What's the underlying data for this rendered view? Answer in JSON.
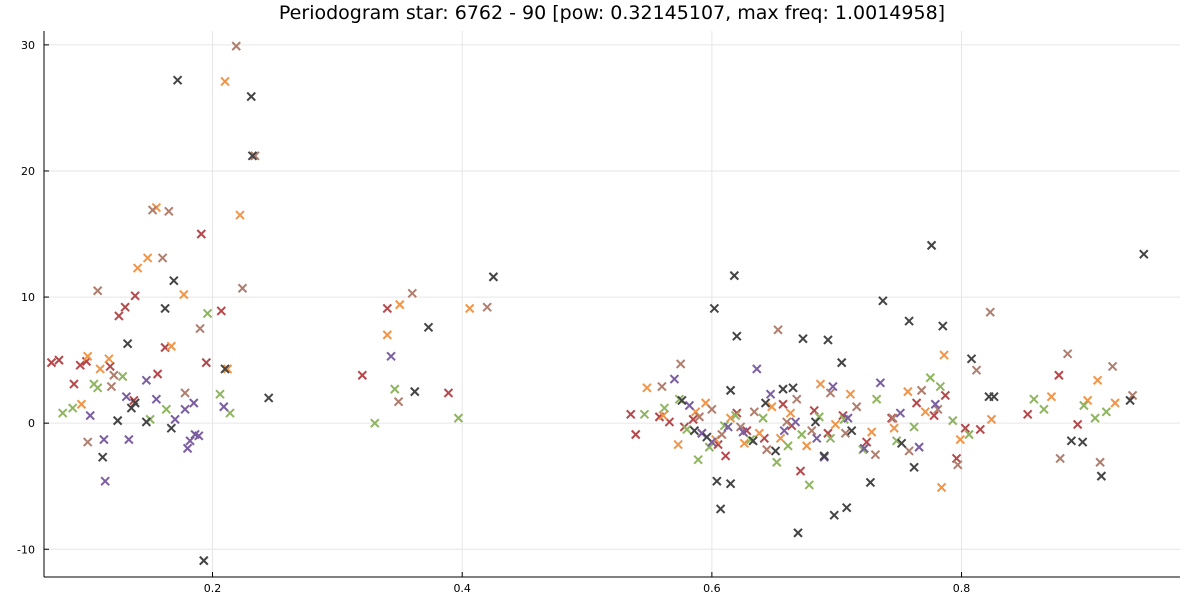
{
  "chart_data": {
    "type": "scatter",
    "title": "Periodogram star: 6762 - 90 [pow: 0.32145107, max freq: 1.0014958]",
    "xlabel": "",
    "ylabel": "",
    "xlim": [
      0.065,
      0.975
    ],
    "ylim": [
      -12.2,
      31.1
    ],
    "x_ticks": [
      0.2,
      0.4,
      0.6,
      0.8
    ],
    "x_tick_labels": [
      "0.2",
      "0.4",
      "0.6",
      "0.8"
    ],
    "y_ticks": [
      -10,
      0,
      10,
      20,
      30
    ],
    "y_tick_labels": [
      "-10",
      "0",
      "10",
      "20",
      "30"
    ],
    "grid": true,
    "legend": "none",
    "marker": "x",
    "series": [
      {
        "color": "#b5484b",
        "points": [
          [
            0.071,
            4.8
          ],
          [
            0.077,
            5.0
          ],
          [
            0.089,
            3.1
          ],
          [
            0.094,
            4.6
          ],
          [
            0.099,
            4.9
          ],
          [
            0.118,
            4.5
          ],
          [
            0.125,
            8.5
          ],
          [
            0.13,
            9.2
          ],
          [
            0.137,
            1.8
          ],
          [
            0.138,
            10.1
          ],
          [
            0.156,
            3.9
          ],
          [
            0.162,
            6.0
          ],
          [
            0.191,
            15.0
          ],
          [
            0.195,
            4.8
          ],
          [
            0.207,
            8.9
          ],
          [
            0.32,
            3.8
          ],
          [
            0.34,
            9.1
          ],
          [
            0.389,
            2.4
          ],
          [
            0.535,
            0.7
          ],
          [
            0.539,
            -0.9
          ],
          [
            0.558,
            0.5
          ],
          [
            0.566,
            0.1
          ],
          [
            0.578,
            -0.3
          ],
          [
            0.585,
            0.3
          ],
          [
            0.592,
            -0.8
          ],
          [
            0.605,
            -1.7
          ],
          [
            0.611,
            -2.6
          ],
          [
            0.62,
            0.8
          ],
          [
            0.628,
            -0.6
          ],
          [
            0.642,
            -1.2
          ],
          [
            0.657,
            1.5
          ],
          [
            0.664,
            -0.2
          ],
          [
            0.671,
            -3.8
          ],
          [
            0.682,
            1.0
          ],
          [
            0.693,
            -0.8
          ],
          [
            0.705,
            0.6
          ],
          [
            0.724,
            -1.5
          ],
          [
            0.744,
            0.4
          ],
          [
            0.764,
            1.6
          ],
          [
            0.778,
            0.6
          ],
          [
            0.787,
            2.2
          ],
          [
            0.796,
            -2.8
          ],
          [
            0.803,
            -0.4
          ],
          [
            0.815,
            -0.5
          ],
          [
            0.853,
            0.7
          ],
          [
            0.878,
            3.8
          ],
          [
            0.893,
            -0.1
          ]
        ]
      },
      {
        "color": "#f0954a",
        "points": [
          [
            0.095,
            1.5
          ],
          [
            0.1,
            5.3
          ],
          [
            0.11,
            4.3
          ],
          [
            0.117,
            5.1
          ],
          [
            0.14,
            12.3
          ],
          [
            0.148,
            13.1
          ],
          [
            0.155,
            17.1
          ],
          [
            0.167,
            6.1
          ],
          [
            0.177,
            10.2
          ],
          [
            0.21,
            27.1
          ],
          [
            0.212,
            4.3
          ],
          [
            0.222,
            16.5
          ],
          [
            0.34,
            7.0
          ],
          [
            0.35,
            9.4
          ],
          [
            0.406,
            9.1
          ],
          [
            0.548,
            2.8
          ],
          [
            0.561,
            0.6
          ],
          [
            0.573,
            -1.7
          ],
          [
            0.587,
            0.9
          ],
          [
            0.595,
            1.6
          ],
          [
            0.603,
            -1.3
          ],
          [
            0.615,
            0.4
          ],
          [
            0.626,
            -1.6
          ],
          [
            0.638,
            -0.8
          ],
          [
            0.648,
            1.3
          ],
          [
            0.655,
            -1.2
          ],
          [
            0.663,
            0.8
          ],
          [
            0.676,
            -1.8
          ],
          [
            0.687,
            3.1
          ],
          [
            0.699,
            -0.1
          ],
          [
            0.711,
            2.3
          ],
          [
            0.728,
            -0.7
          ],
          [
            0.746,
            -0.4
          ],
          [
            0.757,
            2.5
          ],
          [
            0.771,
            0.9
          ],
          [
            0.784,
            -5.1
          ],
          [
            0.786,
            5.4
          ],
          [
            0.799,
            -1.3
          ],
          [
            0.824,
            0.3
          ],
          [
            0.872,
            2.1
          ],
          [
            0.901,
            1.8
          ],
          [
            0.909,
            3.4
          ],
          [
            0.923,
            1.6
          ]
        ]
      },
      {
        "color": "#b07e6e",
        "points": [
          [
            0.1,
            -1.5
          ],
          [
            0.108,
            10.5
          ],
          [
            0.119,
            2.9
          ],
          [
            0.121,
            3.8
          ],
          [
            0.152,
            16.9
          ],
          [
            0.16,
            13.1
          ],
          [
            0.165,
            16.8
          ],
          [
            0.178,
            2.4
          ],
          [
            0.19,
            7.5
          ],
          [
            0.219,
            29.9
          ],
          [
            0.224,
            10.7
          ],
          [
            0.234,
            21.2
          ],
          [
            0.36,
            10.3
          ],
          [
            0.349,
            1.7
          ],
          [
            0.42,
            9.2
          ],
          [
            0.56,
            2.9
          ],
          [
            0.575,
            4.7
          ],
          [
            0.59,
            0.5
          ],
          [
            0.6,
            1.1
          ],
          [
            0.608,
            -0.9
          ],
          [
            0.623,
            -0.3
          ],
          [
            0.634,
            0.9
          ],
          [
            0.644,
            -2.1
          ],
          [
            0.653,
            7.4
          ],
          [
            0.66,
            0.1
          ],
          [
            0.668,
            1.9
          ],
          [
            0.68,
            -0.6
          ],
          [
            0.695,
            2.4
          ],
          [
            0.707,
            -0.8
          ],
          [
            0.716,
            1.3
          ],
          [
            0.731,
            -2.5
          ],
          [
            0.745,
            0.4
          ],
          [
            0.758,
            -2.2
          ],
          [
            0.768,
            2.6
          ],
          [
            0.781,
            1.1
          ],
          [
            0.797,
            -3.3
          ],
          [
            0.812,
            4.2
          ],
          [
            0.823,
            8.8
          ],
          [
            0.879,
            -2.8
          ],
          [
            0.885,
            5.5
          ],
          [
            0.911,
            -3.1
          ],
          [
            0.921,
            4.5
          ],
          [
            0.937,
            2.2
          ]
        ]
      },
      {
        "color": "#8fb561",
        "points": [
          [
            0.08,
            0.8
          ],
          [
            0.088,
            1.2
          ],
          [
            0.105,
            3.1
          ],
          [
            0.108,
            2.8
          ],
          [
            0.128,
            3.7
          ],
          [
            0.15,
            0.3
          ],
          [
            0.163,
            1.1
          ],
          [
            0.196,
            8.7
          ],
          [
            0.206,
            2.3
          ],
          [
            0.214,
            0.8
          ],
          [
            0.33,
            0.0
          ],
          [
            0.346,
            2.7
          ],
          [
            0.397,
            0.4
          ],
          [
            0.546,
            0.7
          ],
          [
            0.562,
            1.2
          ],
          [
            0.574,
            1.9
          ],
          [
            0.58,
            -0.5
          ],
          [
            0.589,
            -2.9
          ],
          [
            0.598,
            -1.9
          ],
          [
            0.61,
            -0.2
          ],
          [
            0.619,
            0.6
          ],
          [
            0.631,
            -1.3
          ],
          [
            0.641,
            0.4
          ],
          [
            0.652,
            -3.1
          ],
          [
            0.661,
            -1.8
          ],
          [
            0.672,
            -0.9
          ],
          [
            0.678,
            -4.9
          ],
          [
            0.686,
            0.5
          ],
          [
            0.695,
            -1.2
          ],
          [
            0.706,
            0.3
          ],
          [
            0.721,
            -2.1
          ],
          [
            0.732,
            1.9
          ],
          [
            0.748,
            -1.4
          ],
          [
            0.762,
            -0.3
          ],
          [
            0.775,
            3.6
          ],
          [
            0.783,
            2.9
          ],
          [
            0.793,
            0.2
          ],
          [
            0.806,
            -0.9
          ],
          [
            0.858,
            1.9
          ],
          [
            0.866,
            1.1
          ],
          [
            0.898,
            1.4
          ],
          [
            0.907,
            0.4
          ],
          [
            0.916,
            0.9
          ]
        ]
      },
      {
        "color": "#7b5ea1",
        "points": [
          [
            0.102,
            0.6
          ],
          [
            0.113,
            -1.3
          ],
          [
            0.114,
            -4.6
          ],
          [
            0.131,
            2.1
          ],
          [
            0.133,
            -1.3
          ],
          [
            0.147,
            3.4
          ],
          [
            0.155,
            1.9
          ],
          [
            0.17,
            0.3
          ],
          [
            0.178,
            1.1
          ],
          [
            0.182,
            -1.4
          ],
          [
            0.186,
            -0.9
          ],
          [
            0.189,
            -1.0
          ],
          [
            0.18,
            -2.0
          ],
          [
            0.185,
            1.6
          ],
          [
            0.209,
            1.3
          ],
          [
            0.343,
            5.3
          ],
          [
            0.57,
            3.5
          ],
          [
            0.582,
            1.4
          ],
          [
            0.592,
            -0.8
          ],
          [
            0.6,
            -1.5
          ],
          [
            0.613,
            -0.3
          ],
          [
            0.625,
            -0.7
          ],
          [
            0.636,
            4.3
          ],
          [
            0.647,
            2.3
          ],
          [
            0.658,
            -0.6
          ],
          [
            0.667,
            0.1
          ],
          [
            0.684,
            -1.2
          ],
          [
            0.69,
            -2.7
          ],
          [
            0.697,
            2.9
          ],
          [
            0.709,
            0.4
          ],
          [
            0.722,
            -2.0
          ],
          [
            0.735,
            3.2
          ],
          [
            0.751,
            0.8
          ],
          [
            0.766,
            -1.9
          ],
          [
            0.779,
            1.5
          ]
        ]
      },
      {
        "color": "#444444",
        "points": [
          [
            0.112,
            -2.7
          ],
          [
            0.124,
            0.2
          ],
          [
            0.132,
            6.3
          ],
          [
            0.135,
            1.2
          ],
          [
            0.138,
            1.6
          ],
          [
            0.147,
            0.1
          ],
          [
            0.162,
            9.1
          ],
          [
            0.169,
            11.3
          ],
          [
            0.167,
            -0.4
          ],
          [
            0.172,
            27.2
          ],
          [
            0.193,
            -10.9
          ],
          [
            0.21,
            4.3
          ],
          [
            0.231,
            25.9
          ],
          [
            0.232,
            21.2
          ],
          [
            0.245,
            2.0
          ],
          [
            0.373,
            7.6
          ],
          [
            0.362,
            2.5
          ],
          [
            0.425,
            11.6
          ],
          [
            0.576,
            1.8
          ],
          [
            0.586,
            -0.6
          ],
          [
            0.596,
            -1.1
          ],
          [
            0.602,
            9.1
          ],
          [
            0.604,
            -4.6
          ],
          [
            0.607,
            -6.8
          ],
          [
            0.615,
            2.6
          ],
          [
            0.615,
            -4.8
          ],
          [
            0.618,
            11.7
          ],
          [
            0.62,
            6.9
          ],
          [
            0.633,
            -1.4
          ],
          [
            0.643,
            1.6
          ],
          [
            0.651,
            -2.2
          ],
          [
            0.657,
            2.7
          ],
          [
            0.665,
            2.8
          ],
          [
            0.669,
            -8.7
          ],
          [
            0.673,
            6.7
          ],
          [
            0.683,
            0.1
          ],
          [
            0.69,
            -2.6
          ],
          [
            0.693,
            6.6
          ],
          [
            0.698,
            -7.3
          ],
          [
            0.704,
            4.8
          ],
          [
            0.708,
            -6.7
          ],
          [
            0.712,
            -0.6
          ],
          [
            0.727,
            -4.7
          ],
          [
            0.737,
            9.7
          ],
          [
            0.752,
            -1.6
          ],
          [
            0.758,
            8.1
          ],
          [
            0.762,
            -3.5
          ],
          [
            0.776,
            14.1
          ],
          [
            0.785,
            7.7
          ],
          [
            0.808,
            5.1
          ],
          [
            0.822,
            2.1
          ],
          [
            0.826,
            2.1
          ],
          [
            0.888,
            -1.4
          ],
          [
            0.897,
            -1.5
          ],
          [
            0.912,
            -4.2
          ],
          [
            0.935,
            1.8
          ],
          [
            0.946,
            13.4
          ]
        ]
      }
    ]
  }
}
